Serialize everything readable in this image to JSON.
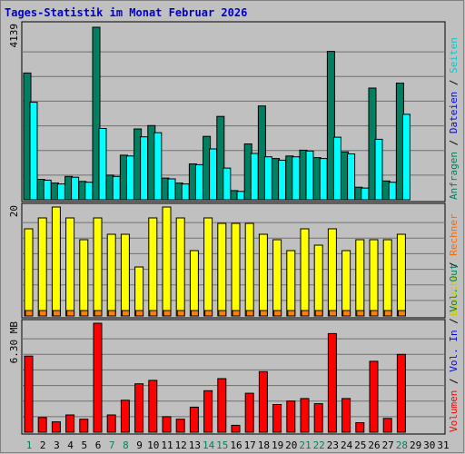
{
  "chart_data": {
    "type": "bar",
    "title": "Tages-Statistik im Monat Februar 2026",
    "x": [
      "1",
      "2",
      "3",
      "4",
      "5",
      "6",
      "7",
      "8",
      "9",
      "10",
      "11",
      "12",
      "13",
      "14",
      "15",
      "16",
      "17",
      "18",
      "19",
      "20",
      "21",
      "22",
      "23",
      "24",
      "25",
      "26",
      "27",
      "28",
      "29",
      "30",
      "31"
    ],
    "weekend_days": [
      "1",
      "7",
      "8",
      "14",
      "15",
      "21",
      "22",
      "28"
    ],
    "panels": [
      {
        "ymax_label": "4139",
        "ymax": 4139,
        "series": [
          {
            "name": "Anfragen",
            "color": "#008060",
            "values": [
              3040,
              490,
              400,
              560,
              440,
              4139,
              590,
              1070,
              1700,
              1780,
              520,
              400,
              860,
              1520,
              2000,
              220,
              1340,
              2250,
              990,
              1050,
              1190,
              1010,
              3560,
              1150,
              300,
              2680,
              450,
              2800,
              0,
              0,
              0
            ]
          },
          {
            "name": "Dateien",
            "color": "#00ffff",
            "values": [
              2340,
              470,
              380,
              540,
              420,
              1710,
              560,
              1050,
              1510,
              1610,
              500,
              380,
              840,
              1220,
              760,
              200,
              1110,
              1030,
              950,
              1030,
              1170,
              990,
              1500,
              1100,
              280,
              1450,
              420,
              2050,
              0,
              0,
              0
            ]
          },
          {
            "name": "Seiten",
            "color": "#00ffff",
            "values": []
          }
        ],
        "legend_colors": {
          "Anfragen": "#008060",
          "Dateien": "#0000ff",
          "Seiten": "#00cccc"
        }
      },
      {
        "ymax_label": "20",
        "ymax": 20,
        "series": [
          {
            "name": "Besuche",
            "color": "#ffff00",
            "values": [
              16,
              18,
              20,
              18,
              14,
              18,
              15,
              15,
              9,
              18,
              20,
              18,
              12,
              18,
              17,
              17,
              17,
              15,
              14,
              12,
              16,
              13,
              16,
              12,
              14,
              14,
              14,
              15,
              0,
              0,
              0
            ]
          },
          {
            "name": "Rechner",
            "color": "#ff8000",
            "values": [
              1,
              1,
              1,
              1,
              1,
              1,
              1,
              1,
              1,
              1,
              1,
              1,
              1,
              1,
              1,
              1,
              1,
              1,
              1,
              1,
              1,
              1,
              1,
              1,
              1,
              1,
              1,
              1,
              0,
              0,
              0
            ]
          }
        ],
        "legend_colors": {
          "Besuche": "#cccc00",
          "Rechner": "#ff6600"
        }
      },
      {
        "ymax_label": "6.30 MB",
        "ymax": 6.3,
        "series": [
          {
            "name": "Volumen",
            "color": "#ff0000",
            "values": [
              4.4,
              0.85,
              0.6,
              1.0,
              0.75,
              6.3,
              1.0,
              1.85,
              2.8,
              3.0,
              0.9,
              0.75,
              1.45,
              2.4,
              3.1,
              0.4,
              2.25,
              3.5,
              1.6,
              1.8,
              1.95,
              1.65,
              5.7,
              1.95,
              0.55,
              4.1,
              0.8,
              4.5,
              0,
              0,
              0
            ]
          }
        ],
        "legend_colors": {
          "Volumen": "#ff0000",
          "Vol. In": "#0000ff",
          "Vol. Out": "#008060"
        }
      }
    ],
    "side_labels": {
      "top": [
        "Anfragen",
        "Dateien",
        "Seiten"
      ],
      "middle": [
        "Besuche",
        "Rechner"
      ],
      "bottom": [
        "Volumen",
        "Vol. In",
        "Vol. Out"
      ],
      "separator": " / "
    },
    "grid": true
  }
}
